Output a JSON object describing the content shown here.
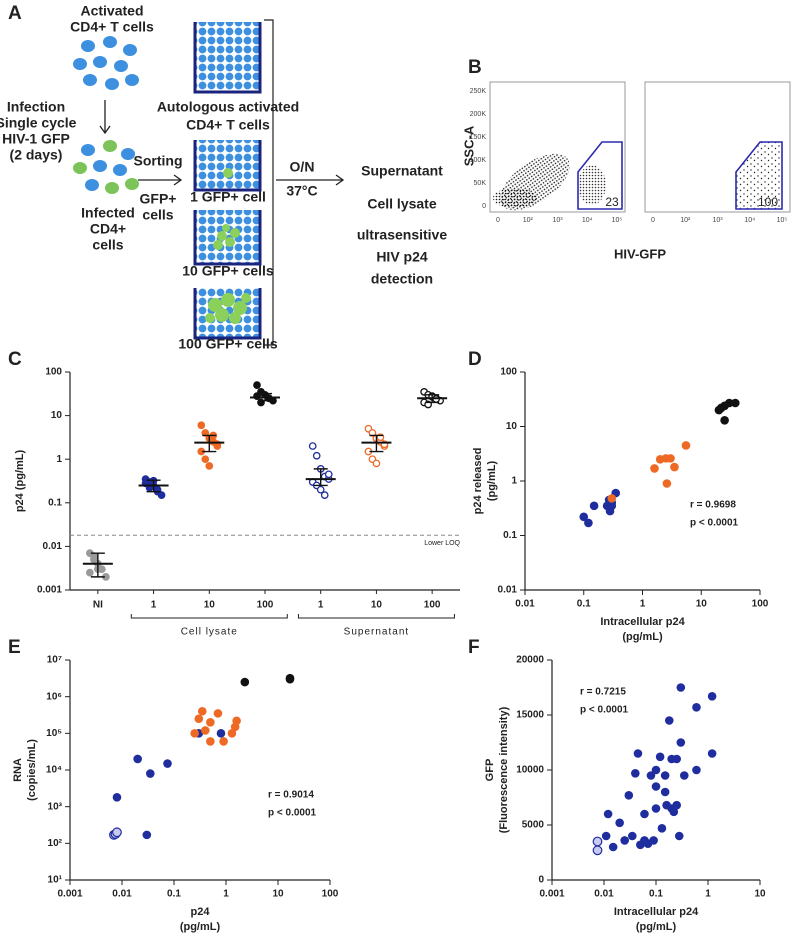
{
  "diagram": {
    "panel": "A",
    "top_cells": [
      "Activated",
      "CD4+ T cells"
    ],
    "infection": [
      "Infection",
      "Single cycle",
      "HIV-1 GFP",
      "(2 days)"
    ],
    "infected": [
      "Infected",
      "CD4+",
      "cells"
    ],
    "sorting": "Sorting",
    "gfp": [
      "GFP+",
      "cells"
    ],
    "wells": [
      [
        "Autologous activated",
        "CD4+ T cells"
      ],
      [
        "1 GFP+ cell"
      ],
      [
        "10 GFP+ cells"
      ],
      [
        "100 GFP+ cells"
      ]
    ],
    "condition": [
      "O/N",
      "37°C"
    ],
    "readouts": [
      "Supernatant",
      "Cell lysate",
      "ultrasensitive",
      "HIV p24",
      "detection"
    ]
  },
  "flow": {
    "panel": "B",
    "y_label": "SSC-A",
    "x_label": "HIV-GFP",
    "y_ticks": [
      "0",
      "50K",
      "100K",
      "150K",
      "200K",
      "250K"
    ],
    "x_ticks": [
      "0",
      "10²",
      "10³",
      "10⁴",
      "10⁵"
    ],
    "gates": [
      "23",
      "100"
    ]
  },
  "chart_data": [
    {
      "type": "dot",
      "panel": "C",
      "ylabel": "p24 (pg/mL)",
      "log_y": true,
      "ylim": [
        0.001,
        100
      ],
      "yticks": [
        0.001,
        0.01,
        0.1,
        1,
        10,
        100
      ],
      "categories": [
        "NI",
        "1",
        "10",
        "100",
        "1",
        "10",
        "100"
      ],
      "x_groups": [
        null,
        "Cell lysate",
        "Cell lysate",
        "Cell lysate",
        "Supernatant",
        "Supernatant",
        "Supernatant"
      ],
      "colors": [
        "#9a9a9a",
        "#1f2d9e",
        "#ee6a24",
        "#111111",
        "#1f2d9e",
        "#ee6a24",
        "#111111"
      ],
      "filled": [
        true,
        true,
        true,
        true,
        false,
        false,
        false
      ],
      "points": [
        [
          0.007,
          0.005,
          0.004,
          0.003,
          0.002,
          0.0025,
          0.006,
          0.003
        ],
        [
          0.35,
          0.3,
          0.25,
          0.2,
          0.15,
          0.28,
          0.22,
          0.32,
          0.18
        ],
        [
          6,
          4,
          3,
          2.5,
          2,
          1.5,
          1,
          0.7,
          3.5,
          2.2
        ],
        [
          50,
          35,
          30,
          25,
          22,
          28,
          20
        ],
        [
          2,
          1.2,
          0.6,
          0.4,
          0.35,
          0.3,
          0.25,
          0.2,
          0.15,
          0.45
        ],
        [
          5,
          4,
          3,
          2.5,
          2,
          1.5,
          1,
          0.8,
          3.2,
          2.2
        ],
        [
          35,
          30,
          28,
          25,
          22,
          20,
          18,
          27,
          24
        ]
      ],
      "medians": [
        0.004,
        0.25,
        2.4,
        26,
        0.35,
        2.4,
        25
      ],
      "ranges": [
        [
          0.002,
          0.007
        ],
        [
          0.18,
          0.33
        ],
        [
          1.5,
          3.5
        ],
        [
          22,
          32
        ],
        [
          0.25,
          0.6
        ],
        [
          1.5,
          3.5
        ],
        [
          20,
          30
        ]
      ],
      "reference": {
        "value": 0.018,
        "label": "Lower LOQ"
      }
    },
    {
      "type": "scatter",
      "panel": "D",
      "ylabel": [
        "p24 released",
        "(pg/mL)"
      ],
      "xlabel": [
        "Intracellular p24",
        "(pg/mL)"
      ],
      "log_x": true,
      "log_y": true,
      "xlim": [
        0.01,
        100
      ],
      "xticks": [
        0.01,
        0.1,
        1,
        10,
        100
      ],
      "ylim": [
        0.01,
        100
      ],
      "yticks": [
        0.01,
        0.1,
        1,
        10,
        100
      ],
      "annotations": [
        "r = 0.9698",
        "p < 0.0001"
      ],
      "series": [
        {
          "color": "#1f2d9e",
          "x": [
            0.1,
            0.12,
            0.15,
            0.25,
            0.28,
            0.3,
            0.35,
            0.3,
            0.27
          ],
          "values": [
            0.22,
            0.17,
            0.35,
            0.35,
            0.28,
            0.4,
            0.6,
            0.35,
            0.45
          ]
        },
        {
          "color": "#ee6a24",
          "x": [
            0.3,
            1.6,
            2,
            2.5,
            3,
            3.5,
            2.6,
            5.5
          ],
          "values": [
            0.48,
            1.7,
            2.5,
            2.6,
            2.6,
            1.8,
            0.9,
            4.5
          ]
        },
        {
          "color": "#111111",
          "x": [
            20,
            22,
            25,
            30,
            38,
            25
          ],
          "values": [
            20,
            22,
            13,
            27,
            27,
            24
          ]
        }
      ]
    },
    {
      "type": "scatter",
      "panel": "E",
      "ylabel": [
        "RNA",
        "(copies/mL)"
      ],
      "xlabel": [
        "p24",
        "(pg/mL)"
      ],
      "log_x": true,
      "log_y": true,
      "xlim": [
        0.001,
        100
      ],
      "xticks": [
        0.001,
        0.01,
        0.1,
        1,
        10,
        100
      ],
      "ylim": [
        10,
        10000000
      ],
      "yticks": [
        {
          "value": 10,
          "label": "10¹"
        },
        {
          "value": 100,
          "label": "10²"
        },
        {
          "value": 1000,
          "label": "10³"
        },
        {
          "value": 10000,
          "label": "10⁴"
        },
        {
          "value": 100000,
          "label": "10⁵"
        },
        {
          "value": 1000000,
          "label": "10⁶"
        },
        {
          "value": 10000000,
          "label": "10⁷"
        }
      ],
      "annotations": [
        "r = 0.9014",
        "p < 0.0001"
      ],
      "series": [
        {
          "color": "#c8c8f0",
          "edgecolor": "#1f2d9e",
          "x": [
            0.007,
            0.0075,
            0.008
          ],
          "values": [
            170,
            180,
            200
          ]
        },
        {
          "color": "#1f2d9e",
          "x": [
            0.008,
            0.02,
            0.03,
            0.035,
            0.075,
            0.8,
            0.3
          ],
          "values": [
            1800,
            20000,
            170,
            8000,
            15000,
            100000,
            100000
          ]
        },
        {
          "color": "#ee6a24",
          "x": [
            0.25,
            0.3,
            0.35,
            0.5,
            0.5,
            0.7,
            0.9,
            1.3,
            1.5,
            1.6,
            0.4
          ],
          "values": [
            100000,
            250000,
            400000,
            60000,
            200000,
            350000,
            60000,
            100000,
            150000,
            220000,
            120000
          ]
        },
        {
          "color": "#111111",
          "x": [
            2.3,
            17,
            17
          ],
          "values": [
            2500000,
            3000000,
            3200000
          ]
        }
      ]
    },
    {
      "type": "scatter",
      "panel": "F",
      "ylabel": [
        "GFP",
        "(Fluorescence intensity)"
      ],
      "xlabel": [
        "Intracellular p24",
        "(pg/mL)"
      ],
      "log_x": true,
      "log_y": false,
      "xlim": [
        0.001,
        10
      ],
      "xticks": [
        0.001,
        0.01,
        0.1,
        1,
        10
      ],
      "ylim": [
        0,
        20000
      ],
      "yticks": [
        0,
        5000,
        10000,
        15000,
        20000
      ],
      "annotations": [
        "r = 0.7215",
        "p < 0.0001"
      ],
      "series": [
        {
          "color": "#c8c8f0",
          "edgecolor": "#1f2d9e",
          "x": [
            0.0075,
            0.0075
          ],
          "values": [
            2700,
            3500
          ]
        },
        {
          "color": "#1f2d9e",
          "x": [
            0.011,
            0.012,
            0.015,
            0.02,
            0.025,
            0.03,
            0.035,
            0.04,
            0.045,
            0.05,
            0.06,
            0.06,
            0.07,
            0.08,
            0.09,
            0.1,
            0.1,
            0.12,
            0.13,
            0.15,
            0.16,
            0.18,
            0.2,
            0.2,
            0.22,
            0.25,
            0.25,
            0.28,
            0.3,
            0.3,
            0.35,
            0.6,
            0.6,
            1.2,
            1.2,
            0.1,
            0.15
          ],
          "values": [
            4000,
            6000,
            3000,
            5200,
            3600,
            7700,
            4000,
            9700,
            11500,
            3200,
            6000,
            3600,
            3300,
            9500,
            3600,
            6500,
            8500,
            11200,
            4700,
            9500,
            6800,
            14500,
            6500,
            11000,
            6200,
            11000,
            6800,
            4000,
            17500,
            12500,
            9500,
            15700,
            10000,
            16700,
            11500,
            10000,
            8000
          ]
        }
      ]
    }
  ]
}
